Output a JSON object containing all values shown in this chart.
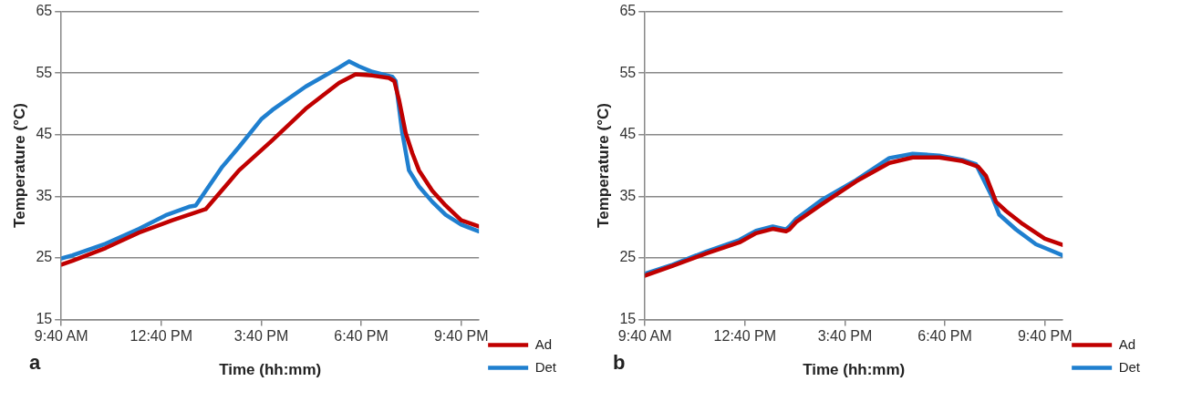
{
  "chart_data": [
    {
      "type": "line",
      "xlabel": "Time (hh:mm)",
      "ylabel": "Temperature (°C)",
      "annotations": [
        "a"
      ],
      "xlim": [
        9.667,
        22.2
      ],
      "xticks": [
        {
          "value": 9.667,
          "label": "9:40 AM"
        },
        {
          "value": 12.667,
          "label": "12:40 PM"
        },
        {
          "value": 15.667,
          "label": "3:40 PM"
        },
        {
          "value": 18.667,
          "label": "6:40 PM"
        },
        {
          "value": 21.667,
          "label": "9:40 PM"
        }
      ],
      "ylim": [
        15,
        65
      ],
      "yticks": [
        15,
        25,
        35,
        45,
        55,
        65
      ],
      "grid": "y",
      "legend": "bottom right",
      "marker": "none",
      "line_style": "solid",
      "series": [
        {
          "name": "Ad",
          "color": "#c00000",
          "x": [
            9.667,
            10,
            11,
            12,
            13,
            14,
            15,
            16,
            17,
            18,
            18.5,
            19,
            19.5,
            19.66,
            19.8,
            20,
            20.2,
            20.4,
            20.8,
            21.2,
            21.667,
            22.2
          ],
          "values": [
            23.9,
            24.5,
            26.6,
            29.1,
            31.1,
            32.9,
            39.2,
            44.1,
            49.2,
            53.4,
            54.8,
            54.6,
            54.2,
            53.7,
            50.7,
            45.3,
            42,
            39.2,
            35.9,
            33.5,
            31.1,
            30.1
          ]
        },
        {
          "name": "Det",
          "color": "#1f7fcf",
          "x": [
            9.667,
            10,
            11,
            12,
            12.8,
            13.5,
            13.7,
            14.5,
            15,
            15.667,
            16,
            17,
            18,
            18.3,
            18.6,
            19,
            19.6,
            19.7,
            19.9,
            20.1,
            20.4,
            20.8,
            21.2,
            21.667,
            22.2
          ],
          "values": [
            24.9,
            25.4,
            27.3,
            29.7,
            31.9,
            33.3,
            33.5,
            39.8,
            43,
            47.5,
            49,
            52.8,
            55.9,
            56.9,
            56.1,
            55.2,
            54.4,
            53.7,
            45.3,
            39.2,
            36.6,
            34.1,
            32,
            30.4,
            29.3
          ]
        }
      ]
    },
    {
      "type": "line",
      "xlabel": "Time (hh:mm)",
      "ylabel": "Temperature (°C)",
      "annotations": [
        "b"
      ],
      "xlim": [
        9.667,
        22.2
      ],
      "xticks": [
        {
          "value": 9.667,
          "label": "9:40 AM"
        },
        {
          "value": 12.667,
          "label": "12:40 PM"
        },
        {
          "value": 15.667,
          "label": "3:40 PM"
        },
        {
          "value": 18.667,
          "label": "6:40 PM"
        },
        {
          "value": 21.667,
          "label": "9:40 PM"
        }
      ],
      "ylim": [
        15,
        65
      ],
      "yticks": [
        15,
        25,
        35,
        45,
        55,
        65
      ],
      "grid": "y",
      "legend": "bottom right",
      "marker": "none",
      "line_style": "solid",
      "series": [
        {
          "name": "Ad",
          "color": "#c00000",
          "x": [
            9.667,
            10.5,
            11.5,
            12.5,
            13,
            13.5,
            13.9,
            14,
            14.2,
            15,
            16,
            17,
            17.7,
            18.5,
            19.2,
            19.667,
            19.9,
            20.2,
            20.5,
            21,
            21.667,
            22.2
          ],
          "values": [
            22.1,
            23.7,
            25.7,
            27.5,
            29,
            29.7,
            29.3,
            29.6,
            30.8,
            33.8,
            37.4,
            40.4,
            41.3,
            41.3,
            40.7,
            39.8,
            38.3,
            34.1,
            32.6,
            30.5,
            28.1,
            27.1
          ]
        },
        {
          "name": "Det",
          "color": "#1f7fcf",
          "x": [
            9.667,
            10.5,
            11.5,
            12.5,
            13,
            13.5,
            13.9,
            14,
            14.2,
            15,
            16,
            17,
            17.7,
            18.5,
            19.2,
            19.6,
            19.8,
            20.1,
            20.3,
            20.8,
            21.4,
            21.667,
            22.2
          ],
          "values": [
            22.4,
            23.9,
            26,
            27.9,
            29.4,
            30.1,
            29.6,
            30.1,
            31.3,
            34.5,
            37.6,
            41.2,
            41.9,
            41.6,
            40.9,
            40.2,
            38,
            34.7,
            32,
            29.6,
            27.2,
            26.6,
            25.4
          ]
        }
      ]
    }
  ]
}
